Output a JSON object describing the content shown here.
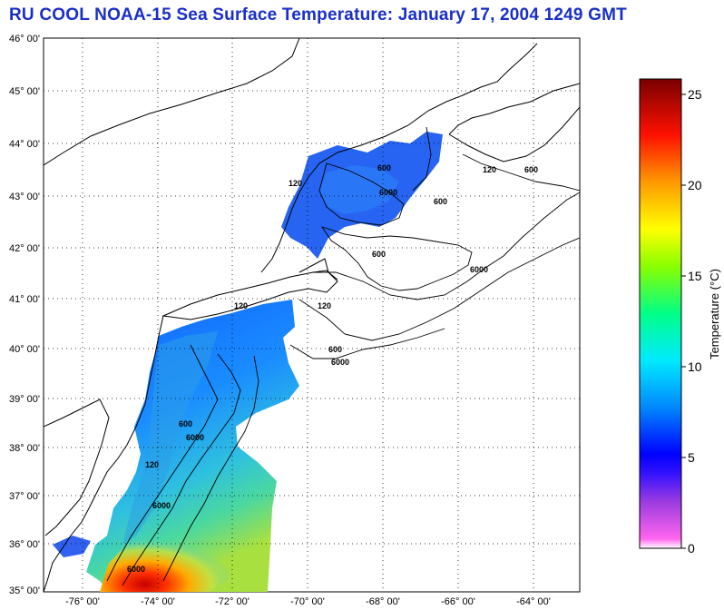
{
  "title": "RU COOL  NOAA-15  Sea Surface Temperature:  January 17, 2004 1249 GMT",
  "map": {
    "lat_labels": [
      "46° 00'",
      "45° 00'",
      "44° 00'",
      "43° 00'",
      "42° 00'",
      "41° 00'",
      "40° 00'",
      "39° 00'",
      "38° 00'",
      "37° 00'",
      "36° 00'",
      "35° 00'"
    ],
    "lon_labels": [
      "-76° 00'",
      "-74° 00'",
      "-72° 00'",
      "-70° 00'",
      "-68° 00'",
      "-66° 00'",
      "-64° 00'"
    ],
    "contour_labels": [
      "600",
      "6000",
      "600",
      "120",
      "600",
      "120",
      "600",
      "6000",
      "120",
      "600",
      "6000",
      "6000",
      "120",
      "600",
      "6000",
      "120",
      "6000"
    ]
  },
  "colorbar": {
    "title": "Temperature (°C)",
    "ticks": [
      "25",
      "20",
      "15",
      "10",
      "5",
      "0"
    ],
    "range": [
      0,
      26
    ],
    "colors": [
      "#ffffff",
      "#ff66ee",
      "#8a2be2",
      "#0000ff",
      "#0099ff",
      "#00ffff",
      "#00ff66",
      "#aaff00",
      "#ffff00",
      "#ff9900",
      "#ff0000",
      "#8b0000"
    ]
  }
}
